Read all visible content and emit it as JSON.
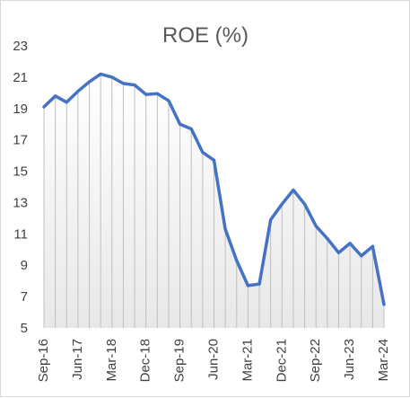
{
  "chart_data": {
    "type": "area",
    "title": "ROE (%)",
    "xlabel": "",
    "ylabel": "",
    "ylim": [
      5,
      23
    ],
    "y_ticks": [
      5,
      7,
      9,
      11,
      13,
      15,
      17,
      19,
      21,
      23
    ],
    "x_tick_labels": [
      "Sep-16",
      "Jun-17",
      "Mar-18",
      "Dec-18",
      "Sep-19",
      "Jun-20",
      "Mar-21",
      "Dec-21",
      "Sep-22",
      "Jun-23",
      "Mar-24"
    ],
    "grid": "vertical drop lines at every quarter",
    "legend": "none",
    "line_color": "#4472C4",
    "drop_line_color": "#bfbfbf",
    "area_gradient": [
      "#ffffff",
      "#e8e8e8"
    ],
    "series": [
      {
        "categories": [
          "Sep-16",
          "Dec-16",
          "Mar-17",
          "Jun-17",
          "Sep-17",
          "Dec-17",
          "Mar-18",
          "Jun-18",
          "Sep-18",
          "Dec-18",
          "Mar-19",
          "Jun-19",
          "Sep-19",
          "Dec-19",
          "Mar-20",
          "Jun-20",
          "Sep-20",
          "Dec-20",
          "Mar-21",
          "Jun-21",
          "Sep-21",
          "Dec-21",
          "Mar-22",
          "Jun-22",
          "Sep-22",
          "Dec-22",
          "Mar-23",
          "Jun-23",
          "Sep-23",
          "Dec-23",
          "Mar-24"
        ],
        "values": [
          19.1,
          19.8,
          19.4,
          20.1,
          20.7,
          21.2,
          21.0,
          20.6,
          20.5,
          19.9,
          19.95,
          19.5,
          18.0,
          17.7,
          16.2,
          15.7,
          11.3,
          9.3,
          7.7,
          7.8,
          11.9,
          12.9,
          13.8,
          12.9,
          11.5,
          10.7,
          9.8,
          10.4,
          9.6,
          10.2,
          6.5
        ]
      }
    ]
  }
}
